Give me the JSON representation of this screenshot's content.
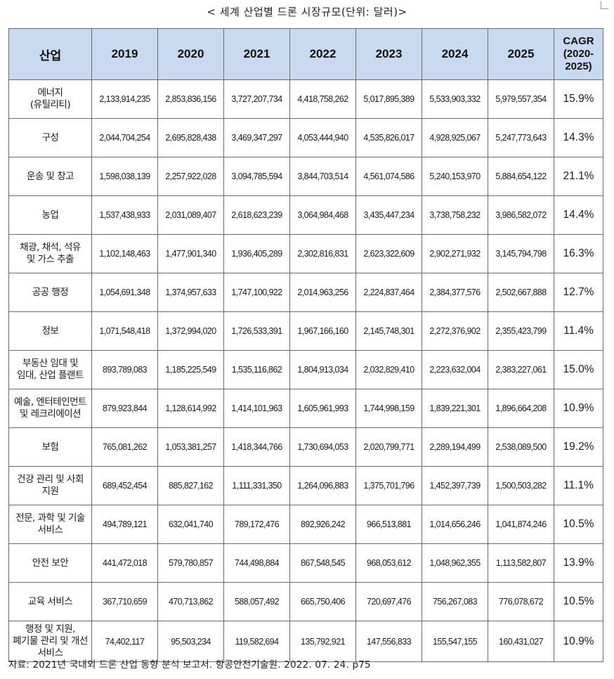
{
  "title": "< 세계 산업별 드론 시장규모(단위: 달러)>",
  "headers": {
    "industry": "산업",
    "y2019": "2019",
    "y2020": "2020",
    "y2021": "2021",
    "y2022": "2022",
    "y2023": "2023",
    "y2024": "2024",
    "y2025": "2025",
    "cagr_line1": "CAGR",
    "cagr_line2": "(2020-",
    "cagr_line3": "2025)"
  },
  "rows": [
    {
      "industry": "에너지\n(유틸리티)",
      "values": [
        "2,133,914,235",
        "2,853,836,156",
        "3,727,207,734",
        "4,418,758,262",
        "5,017,895,389",
        "5,533,903,332",
        "5,979,557,354"
      ],
      "cagr": "15.9%"
    },
    {
      "industry": "구성",
      "values": [
        "2,044,704,254",
        "2,695,828,438",
        "3,469,347,297",
        "4,053,444,940",
        "4,535,826,017",
        "4,928,925,067",
        "5,247,773,643"
      ],
      "cagr": "14.3%"
    },
    {
      "industry": "운송 및 창고",
      "values": [
        "1,598,038,139",
        "2,257,922,028",
        "3,094,785,594",
        "3,844,703,514",
        "4,561,074,586",
        "5,240,153,970",
        "5,884,654,122"
      ],
      "cagr": "21.1%"
    },
    {
      "industry": "농업",
      "values": [
        "1,537,438,933",
        "2,031,089,407",
        "2,618,623,239",
        "3,064,984,468",
        "3,435,447,234",
        "3,738,758,232",
        "3,986,582,072"
      ],
      "cagr": "14.4%"
    },
    {
      "industry": "채광, 채석, 석유\n및 가스 추출",
      "values": [
        "1,102,148,463",
        "1,477,901,340",
        "1,936,405,289",
        "2,302,816,831",
        "2,623,322,609",
        "2,902,271,932",
        "3,145,794,798"
      ],
      "cagr": "16.3%"
    },
    {
      "industry": "공공 행정",
      "values": [
        "1,054,691,348",
        "1,374,957,633",
        "1,747,100,922",
        "2,014,963,256",
        "2,224,837,464",
        "2,384,377,576",
        "2,502,667,888"
      ],
      "cagr": "12.7%"
    },
    {
      "industry": "정보",
      "values": [
        "1,071,548,418",
        "1,372,994,020",
        "1,726,533,391",
        "1,967,166,160",
        "2,145,748,301",
        "2,272,376,902",
        "2,355,423,799"
      ],
      "cagr": "11.4%"
    },
    {
      "industry": "부동산 임대 및\n임대, 산업 플랜트",
      "values": [
        "893,789,083",
        "1,185,225,549",
        "1,535,116,862",
        "1,804,913,034",
        "2,032,829,410",
        "2,223,632,004",
        "2,383,227,061"
      ],
      "cagr": "15.0%"
    },
    {
      "industry": "예술, 엔터테인먼트\n및 레크리에이션",
      "values": [
        "879,923,844",
        "1,128,614,992",
        "1,414,101,963",
        "1,605,961,993",
        "1,744,998,159",
        "1,839,221,301",
        "1,896,664,208"
      ],
      "cagr": "10.9%"
    },
    {
      "industry": "보험",
      "values": [
        "765,081,262",
        "1,053,381,257",
        "1,418,344,766",
        "1,730,694,053",
        "2,020,799,771",
        "2,289,194,499",
        "2,538,089,500"
      ],
      "cagr": "19.2%"
    },
    {
      "industry": "건강 관리 및 사회\n지원",
      "values": [
        "689,452,454",
        "885,827,162",
        "1,111,331,350",
        "1,264,096,883",
        "1,375,701,796",
        "1,452,397,739",
        "1,500,503,282"
      ],
      "cagr": "11.1%"
    },
    {
      "industry": "전문, 과학 및 기술\n서비스",
      "values": [
        "494,789,121",
        "632,041,740",
        "789,172,476",
        "892,926,242",
        "966,513,881",
        "1,014,656,246",
        "1,041,874,246"
      ],
      "cagr": "10.5%"
    },
    {
      "industry": "안전 보안",
      "values": [
        "441,472,018",
        "579,780,857",
        "744,498,884",
        "867,548,545",
        "968,053,612",
        "1,048,962,355",
        "1,113,582,807"
      ],
      "cagr": "13.9%"
    },
    {
      "industry": "교육 서비스",
      "values": [
        "367,710,659",
        "470,713,862",
        "588,057,492",
        "665,750,406",
        "720,697,476",
        "756,267,083",
        "776,078,672"
      ],
      "cagr": "10.5%"
    },
    {
      "industry": "행정 및 지원,\n폐기물 관리 및 개선\n서비스",
      "values": [
        "74,402,117",
        "95,503,234",
        "119,582,694",
        "135,792,921",
        "147,556,833",
        "155,547,155",
        "160,431,027"
      ],
      "cagr": "10.9%"
    }
  ],
  "source": "자료: 2021년 국내외 드론 산업 동향 분석 보고서. 항공안전기술원. 2022. 07. 24.  p75"
}
